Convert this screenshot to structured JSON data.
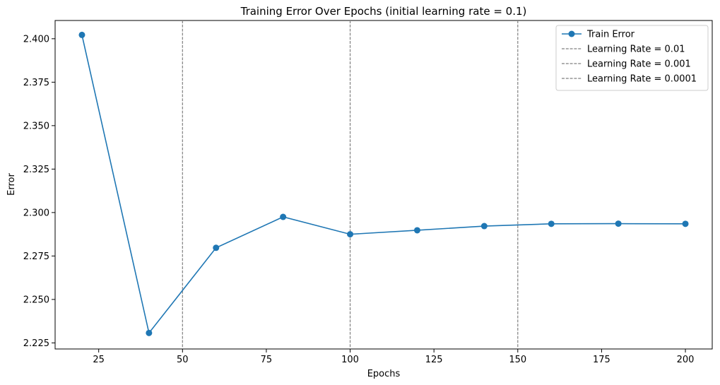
{
  "chart_data": {
    "type": "line",
    "title": "Training Error Over Epochs (initial learning rate = 0.1)",
    "xlabel": "Epochs",
    "ylabel": "Error",
    "xlim": [
      12,
      208
    ],
    "ylim": [
      2.2215,
      2.4105
    ],
    "xticks": [
      25,
      50,
      75,
      100,
      125,
      150,
      175,
      200
    ],
    "yticks": [
      2.225,
      2.25,
      2.275,
      2.3,
      2.325,
      2.35,
      2.375,
      2.4
    ],
    "xtick_labels": [
      "25",
      "50",
      "75",
      "100",
      "125",
      "150",
      "175",
      "200"
    ],
    "ytick_labels": [
      "2.225",
      "2.250",
      "2.275",
      "2.300",
      "2.325",
      "2.350",
      "2.375",
      "2.400"
    ],
    "grid": false,
    "legend_position": "top-right",
    "series": [
      {
        "name": "Train Error",
        "color": "#1f77b4",
        "x": [
          20,
          40,
          60,
          80,
          100,
          120,
          140,
          160,
          180,
          200
        ],
        "y": [
          2.4022,
          2.2307,
          2.2797,
          2.2975,
          2.2875,
          2.2898,
          2.2922,
          2.2935,
          2.2936,
          2.2935
        ]
      }
    ],
    "vlines": [
      {
        "x": 50,
        "label": "Learning Rate = 0.01",
        "color": "#808080"
      },
      {
        "x": 100,
        "label": "Learning Rate = 0.001",
        "color": "#808080"
      },
      {
        "x": 150,
        "label": "Learning Rate = 0.0001",
        "color": "#808080"
      }
    ]
  }
}
